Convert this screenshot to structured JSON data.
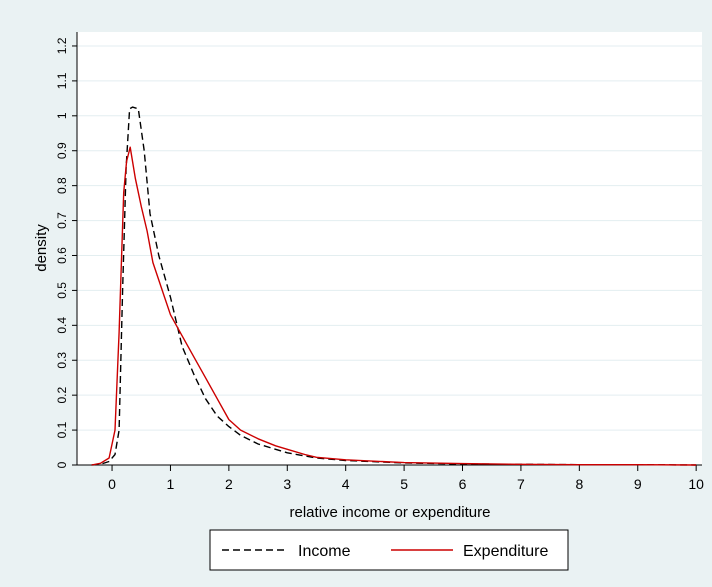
{
  "chart_data": {
    "type": "line",
    "xlabel": "relative income or expenditure",
    "ylabel": "density",
    "xlim": [
      -0.6,
      10.1
    ],
    "ylim": [
      0,
      1.2
    ],
    "x_ticks": [
      0,
      1,
      2,
      3,
      4,
      5,
      6,
      7,
      8,
      9,
      10
    ],
    "y_ticks": [
      0,
      0.1,
      0.2,
      0.3,
      0.4,
      0.5,
      0.6,
      0.7,
      0.8,
      0.9,
      1,
      1.1,
      1.2
    ],
    "grid": true,
    "legend_position": "bottom",
    "series": [
      {
        "name": "Income",
        "color": "#000000",
        "dash": "dashed",
        "x": [
          -0.35,
          -0.2,
          -0.05,
          0.05,
          0.12,
          0.18,
          0.24,
          0.3,
          0.35,
          0.45,
          0.55,
          0.65,
          0.8,
          1.0,
          1.2,
          1.4,
          1.6,
          1.8,
          2.0,
          2.2,
          2.5,
          3.0,
          3.5,
          4.0,
          5.0,
          6.0,
          7.0,
          8.0,
          9.0,
          10.0
        ],
        "y": [
          0.0,
          0.002,
          0.01,
          0.03,
          0.1,
          0.5,
          0.85,
          1.02,
          1.025,
          1.02,
          0.9,
          0.72,
          0.6,
          0.48,
          0.34,
          0.26,
          0.19,
          0.14,
          0.11,
          0.085,
          0.06,
          0.035,
          0.02,
          0.013,
          0.006,
          0.003,
          0.002,
          0.001,
          0.001,
          0.0
        ]
      },
      {
        "name": "Expenditure",
        "color": "#cc0000",
        "dash": "solid",
        "x": [
          -0.35,
          -0.2,
          -0.05,
          0.05,
          0.12,
          0.2,
          0.25,
          0.31,
          0.4,
          0.5,
          0.6,
          0.7,
          0.9,
          1.0,
          1.2,
          1.4,
          1.6,
          1.8,
          2.0,
          2.2,
          2.5,
          2.8,
          3.0,
          3.3,
          3.5,
          4.0,
          5.0,
          6.0,
          7.0,
          8.0,
          9.0,
          10.0
        ],
        "y": [
          0.0,
          0.005,
          0.02,
          0.1,
          0.38,
          0.78,
          0.87,
          0.91,
          0.82,
          0.74,
          0.67,
          0.58,
          0.48,
          0.43,
          0.37,
          0.31,
          0.25,
          0.19,
          0.13,
          0.1,
          0.075,
          0.055,
          0.045,
          0.03,
          0.022,
          0.015,
          0.007,
          0.004,
          0.002,
          0.001,
          0.001,
          0.0
        ]
      }
    ]
  }
}
